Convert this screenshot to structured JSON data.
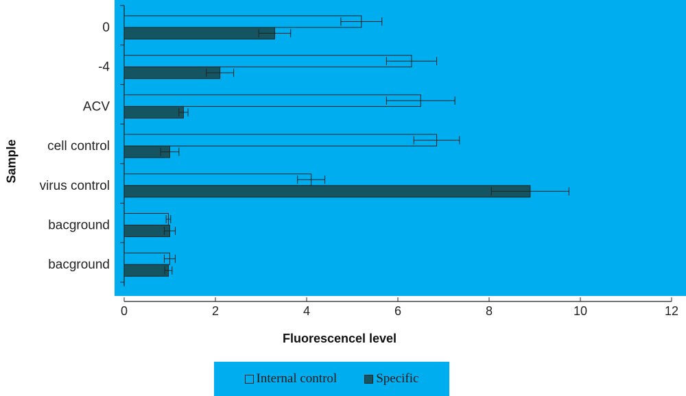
{
  "colors": {
    "background": "#00aeef",
    "internal_control_fill": "#00aeef",
    "specific_fill": "#155561",
    "bar_edge": "#222222"
  },
  "chart_data": {
    "type": "bar",
    "orientation": "horizontal",
    "xlabel": "Fluorescencel level",
    "ylabel": "Sample",
    "xlim": [
      0,
      12
    ],
    "xticks": [
      0,
      2,
      4,
      6,
      8,
      10,
      12
    ],
    "grid": false,
    "legend_position": "bottom",
    "categories": [
      "0",
      "-4",
      "ACV",
      "cell control",
      "virus control",
      "bacground",
      "bacground"
    ],
    "series": [
      {
        "name": "Internal control",
        "values": [
          5.2,
          6.3,
          6.5,
          6.85,
          4.1,
          0.97,
          1.0
        ],
        "errors": [
          0.45,
          0.55,
          0.75,
          0.5,
          0.3,
          0.05,
          0.12
        ]
      },
      {
        "name": "Specific",
        "values": [
          3.3,
          2.1,
          1.3,
          1.0,
          8.9,
          1.0,
          0.97
        ],
        "errors": [
          0.35,
          0.3,
          0.1,
          0.2,
          0.85,
          0.12,
          0.08
        ]
      }
    ]
  }
}
